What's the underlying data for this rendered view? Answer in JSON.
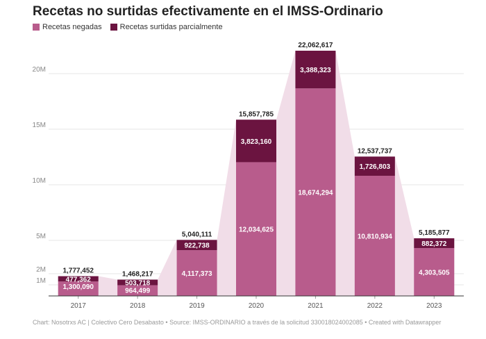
{
  "title": "Recetas no surtidas efectivamente en el IMSS-Ordinario",
  "legend": [
    {
      "label": "Recetas negadas",
      "color": "#b85c8c"
    },
    {
      "label": "Recetas surtidas parcialmente",
      "color": "#6b1440"
    }
  ],
  "footer": "Chart: Nosotrxs AC | Colectivo Cero Desabasto • Source: IMSS-ORDINARIO a través de la solicitud 330018024002085 • Created with Datawrapper",
  "chart_data": {
    "type": "bar",
    "stacked": true,
    "categories": [
      "2017",
      "2018",
      "2019",
      "2020",
      "2021",
      "2022",
      "2023"
    ],
    "series": [
      {
        "name": "Recetas negadas",
        "color": "#b85c8c",
        "values": [
          1300090,
          964499,
          4117373,
          12034625,
          18674294,
          10810934,
          4303505
        ],
        "labels": [
          "1,300,090",
          "964,499",
          "4,117,373",
          "12,034,625",
          "18,674,294",
          "10,810,934",
          "4,303,505"
        ]
      },
      {
        "name": "Recetas surtidas parcialmente",
        "color": "#6b1440",
        "values": [
          477362,
          503718,
          922738,
          3823160,
          3388323,
          1726803,
          882372
        ],
        "labels": [
          "477,362",
          "503,718",
          "922,738",
          "3,823,160",
          "3,388,323",
          "1,726,803",
          "882,372"
        ]
      }
    ],
    "totals": [
      1777452,
      1468217,
      5040111,
      15857785,
      22062617,
      12537737,
      5185877
    ],
    "total_labels": [
      "1,777,452",
      "1,468,217",
      "5,040,111",
      "15,857,785",
      "22,062,617",
      "12,537,737",
      "5,185,877"
    ],
    "yticks": [
      {
        "value": 1000000,
        "label": "1M"
      },
      {
        "value": 2000000,
        "label": "2M"
      },
      {
        "value": 5000000,
        "label": "5M"
      },
      {
        "value": 10000000,
        "label": "10M"
      },
      {
        "value": 15000000,
        "label": "15M"
      },
      {
        "value": 20000000,
        "label": "20M"
      }
    ],
    "ylim": [
      0,
      22062617
    ],
    "area_color": "#f1dde8",
    "grid": true
  }
}
